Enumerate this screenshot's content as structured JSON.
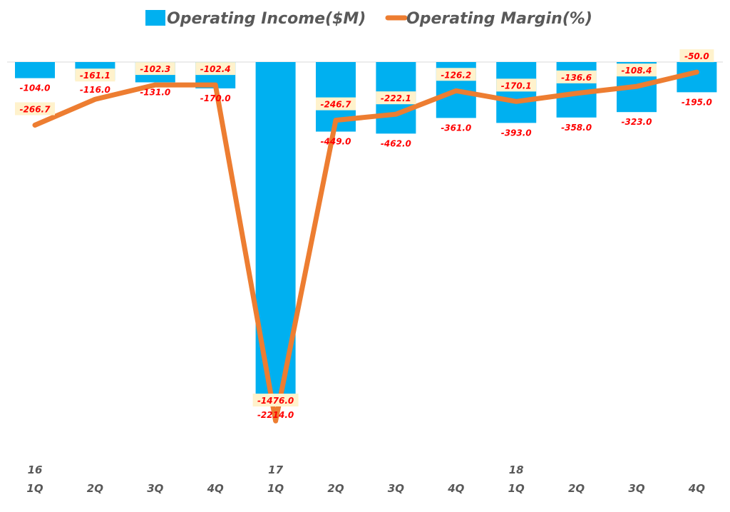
{
  "chart_data": {
    "type": "bar+line",
    "categories": [
      "1Q",
      "2Q",
      "3Q",
      "4Q",
      "1Q",
      "2Q",
      "3Q",
      "4Q",
      "1Q",
      "2Q",
      "3Q",
      "4Q"
    ],
    "year_labels": [
      "16",
      "",
      "",
      "",
      "17",
      "",
      "",
      "",
      "18",
      "",
      "",
      ""
    ],
    "series": [
      {
        "name": "Operating Income($M)",
        "type": "bar",
        "color": "#00b0f0",
        "values": [
          -104.0,
          -116.0,
          -131.0,
          -170.0,
          -2214.0,
          -449.0,
          -462.0,
          -361.0,
          -393.0,
          -358.0,
          -323.0,
          -195.0
        ],
        "labels": [
          "-104.0",
          "-116.0",
          "-131.0",
          "-170.0",
          "-2214.0",
          "-449.0",
          "-462.0",
          "-361.0",
          "-393.0",
          "-358.0",
          "-323.0",
          "-195.0"
        ]
      },
      {
        "name": "Operating Margin(%)",
        "type": "line",
        "color": "#ed7d31",
        "axis": "secondary",
        "values": [
          -266.7,
          -161.1,
          -102.3,
          -102.4,
          -1476.0,
          -246.7,
          -222.1,
          -126.2,
          -170.1,
          -136.6,
          -108.4,
          -50.0
        ],
        "labels": [
          "-266.7",
          "-161.1",
          "-102.3",
          "-102.4",
          "-1476.0",
          "-246.7",
          "-222.1",
          "-126.2",
          "-170.1",
          "-136.6",
          "-108.4",
          "-50.0"
        ]
      }
    ],
    "legend": "top",
    "grid": false,
    "label_color": "#ff0000",
    "label_box_color": "#fff2cc"
  }
}
